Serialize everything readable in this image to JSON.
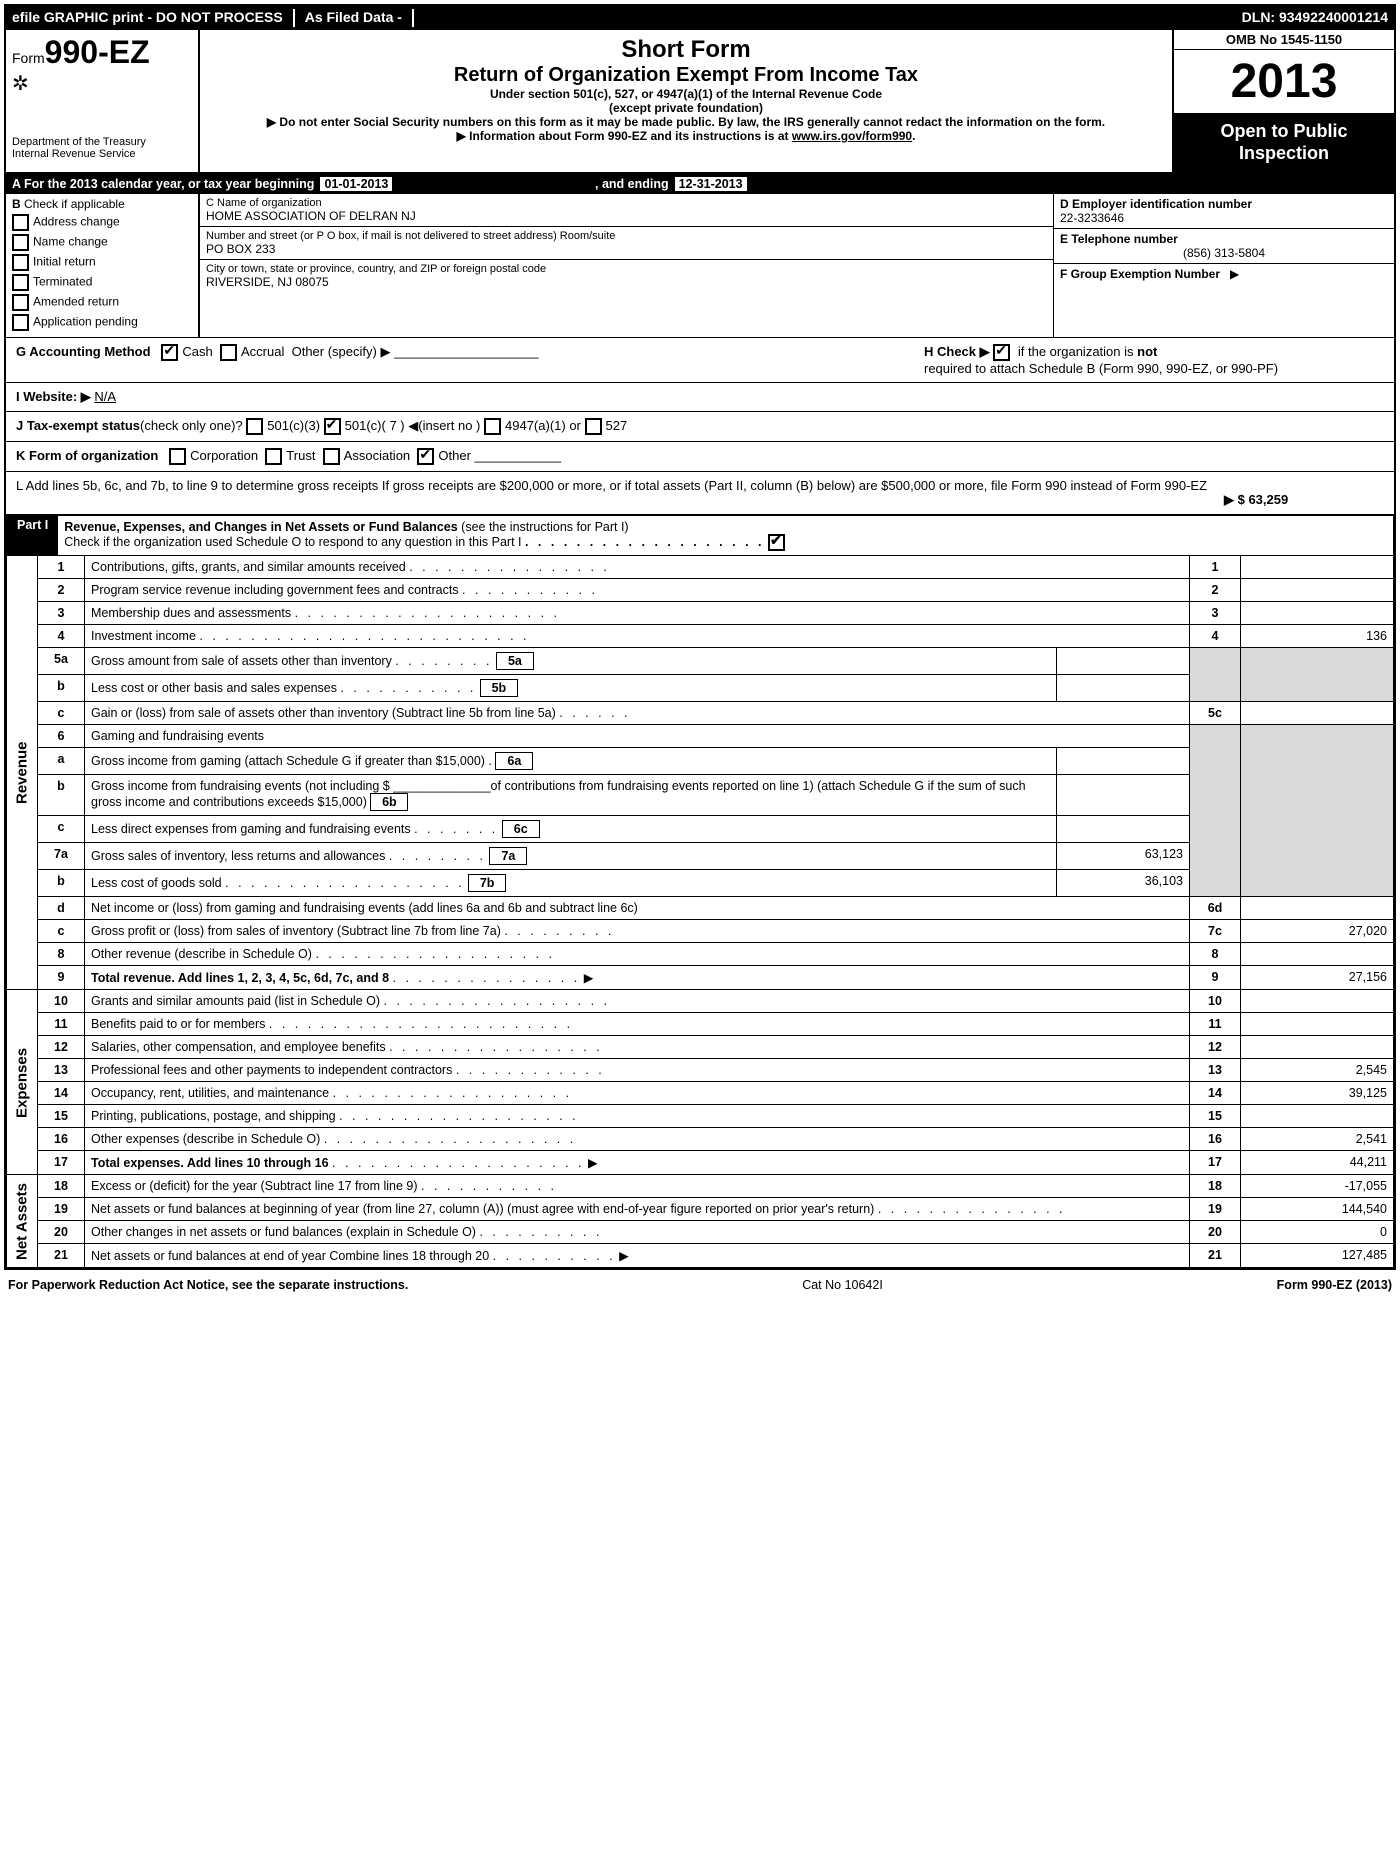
{
  "topbar": {
    "efile": "efile GRAPHIC print - DO NOT PROCESS",
    "asfiled": "As Filed Data -",
    "dln_label": "DLN:",
    "dln": "93492240001214"
  },
  "header": {
    "form_prefix": "Form",
    "form_number": "990-EZ",
    "dept1": "Department of the Treasury",
    "dept2": "Internal Revenue Service",
    "short_form": "Short Form",
    "main_title": "Return of Organization Exempt From Income Tax",
    "subtitle1": "Under section 501(c), 527, or 4947(a)(1) of the Internal Revenue Code",
    "subtitle2": "(except private foundation)",
    "warn1": "▶ Do not enter Social Security numbers on this form as it may be made public. By law, the IRS generally cannot redact the information on the form.",
    "warn2_pre": "▶ Information about Form 990-EZ and its instructions is at ",
    "warn2_link": "www.irs.gov/form990",
    "warn2_post": ".",
    "omb": "OMB No  1545-1150",
    "year": "2013",
    "open": "Open to Public Inspection"
  },
  "lineA": {
    "label": "A  For the 2013 calendar year, or tax year beginning",
    "begin": "01-01-2013",
    "ending_label": ", and ending",
    "end": "12-31-2013"
  },
  "sectionB": {
    "header": "B",
    "subhead": "Check if applicable",
    "items": [
      "Address change",
      "Name change",
      "Initial return",
      "Terminated",
      "Amended return",
      "Application pending"
    ]
  },
  "sectionC": {
    "name_label": "C Name of organization",
    "name": "HOME ASSOCIATION OF DELRAN NJ",
    "street_label": "Number and street (or P  O  box, if mail is not delivered to street address) Room/suite",
    "street": "PO BOX 233",
    "city_label": "City or town, state or province, country, and ZIP or foreign postal code",
    "city": "RIVERSIDE, NJ  08075"
  },
  "sectionD": {
    "label": "D Employer identification number",
    "value": "22-3233646"
  },
  "sectionE": {
    "label": "E Telephone number",
    "value": "(856) 313-5804"
  },
  "sectionF": {
    "label": "F Group Exemption Number",
    "arrow": "▶"
  },
  "accounting": {
    "g_label": "G Accounting Method",
    "cash": "Cash",
    "accrual": "Accrual",
    "other": "Other (specify) ▶",
    "i_label": "I Website: ▶",
    "website": "N/A",
    "j_label": "J Tax-exempt status",
    "j_sub": "(check only one)?",
    "j_501c3": "501(c)(3)",
    "j_501c": "501(c)( 7 )",
    "j_insert": "◀(insert no )",
    "j_4947": "4947(a)(1) or",
    "j_527": "527",
    "h_label": "H  Check ▶",
    "h_text1": "if the organization is",
    "h_not": "not",
    "h_text2": "required to attach Schedule B (Form 990, 990-EZ, or 990-PF)",
    "k_label": "K Form of organization",
    "k_corp": "Corporation",
    "k_trust": "Trust",
    "k_assoc": "Association",
    "k_other": "Other",
    "l_text": "L Add lines 5b, 6c, and 7b, to line 9 to determine gross receipts  If gross receipts are $200,000 or more, or if total assets (Part II, column (B) below) are $500,000 or more, file Form 990 instead of Form 990-EZ",
    "l_amount": "▶ $ 63,259"
  },
  "partI": {
    "title": "Revenue, Expenses, and Changes in Net Assets or Fund Balances",
    "sub": "(see the instructions for Part I)",
    "check_line": "Check if the organization used Schedule O to respond to any question in this Part I",
    "revenue_label": "Revenue",
    "expenses_label": "Expenses",
    "netassets_label": "Net Assets",
    "lines": {
      "1": {
        "ln": "1",
        "text": "Contributions, gifts, grants, and similar amounts received",
        "num": "1",
        "amt": ""
      },
      "2": {
        "ln": "2",
        "text": "Program service revenue including government fees and contracts",
        "num": "2",
        "amt": ""
      },
      "3": {
        "ln": "3",
        "text": "Membership dues and assessments",
        "num": "3",
        "amt": ""
      },
      "4": {
        "ln": "4",
        "text": "Investment income",
        "num": "4",
        "amt": "136"
      },
      "5a": {
        "ln": "5a",
        "text": "Gross amount from sale of assets other than inventory",
        "box": "5a",
        "boxamt": ""
      },
      "5b": {
        "ln": "b",
        "text": "Less  cost or other basis and sales expenses",
        "box": "5b",
        "boxamt": ""
      },
      "5c": {
        "ln": "c",
        "text": "Gain or (loss) from sale of assets other than inventory (Subtract line 5b from line 5a)",
        "num": "5c",
        "amt": ""
      },
      "6": {
        "ln": "6",
        "text": "Gaming and fundraising events"
      },
      "6a": {
        "ln": "a",
        "text": "Gross income from gaming (attach Schedule G if greater than $15,000)",
        "box": "6a",
        "boxamt": ""
      },
      "6b": {
        "ln": "b",
        "text": "Gross income from fundraising events (not including $ ______________of contributions from fundraising events reported on line 1) (attach Schedule G if the sum of such gross income and contributions exceeds $15,000)",
        "box": "6b",
        "boxamt": ""
      },
      "6c": {
        "ln": "c",
        "text": "Less  direct expenses from gaming and fundraising events",
        "box": "6c",
        "boxamt": ""
      },
      "6d": {
        "ln": "d",
        "text": "Net income or (loss) from gaming and fundraising events (add lines 6a and 6b and subtract line 6c)",
        "num": "6d",
        "amt": ""
      },
      "7a": {
        "ln": "7a",
        "text": "Gross sales of inventory, less returns and allowances",
        "box": "7a",
        "boxamt": "63,123"
      },
      "7b": {
        "ln": "b",
        "text": "Less  cost of goods sold",
        "box": "7b",
        "boxamt": "36,103"
      },
      "7c": {
        "ln": "c",
        "text": "Gross profit or (loss) from sales of inventory (Subtract line 7b from line 7a)",
        "num": "7c",
        "amt": "27,020"
      },
      "8": {
        "ln": "8",
        "text": "Other revenue (describe in Schedule O)",
        "num": "8",
        "amt": ""
      },
      "9": {
        "ln": "9",
        "text": "Total revenue. Add lines 1, 2, 3, 4, 5c, 6d, 7c, and 8",
        "num": "9",
        "amt": "27,156",
        "arrow": "▶",
        "bold": true
      },
      "10": {
        "ln": "10",
        "text": "Grants and similar amounts paid (list in Schedule O)",
        "num": "10",
        "amt": ""
      },
      "11": {
        "ln": "11",
        "text": "Benefits paid to or for members",
        "num": "11",
        "amt": ""
      },
      "12": {
        "ln": "12",
        "text": "Salaries, other compensation, and employee benefits",
        "num": "12",
        "amt": ""
      },
      "13": {
        "ln": "13",
        "text": "Professional fees and other payments to independent contractors",
        "num": "13",
        "amt": "2,545"
      },
      "14": {
        "ln": "14",
        "text": "Occupancy, rent, utilities, and maintenance",
        "num": "14",
        "amt": "39,125"
      },
      "15": {
        "ln": "15",
        "text": "Printing, publications, postage, and shipping",
        "num": "15",
        "amt": ""
      },
      "16": {
        "ln": "16",
        "text": "Other expenses (describe in Schedule O)",
        "num": "16",
        "amt": "2,541"
      },
      "17": {
        "ln": "17",
        "text": "Total expenses. Add lines 10 through 16",
        "num": "17",
        "amt": "44,211",
        "arrow": "▶",
        "bold": true
      },
      "18": {
        "ln": "18",
        "text": "Excess or (deficit) for the year (Subtract line 17 from line 9)",
        "num": "18",
        "amt": "-17,055"
      },
      "19": {
        "ln": "19",
        "text": "Net assets or fund balances at beginning of year (from line 27, column (A)) (must agree with end-of-year figure reported on prior year's return)",
        "num": "19",
        "amt": "144,540"
      },
      "20": {
        "ln": "20",
        "text": "Other changes in net assets or fund balances (explain in Schedule O)",
        "num": "20",
        "amt": "0"
      },
      "21": {
        "ln": "21",
        "text": "Net assets or fund balances at end of year  Combine lines 18 through 20",
        "num": "21",
        "amt": "127,485",
        "arrow": "▶"
      }
    }
  },
  "footer": {
    "left": "For Paperwork Reduction Act Notice, see the separate instructions.",
    "center": "Cat  No  10642I",
    "right": "Form 990-EZ (2013)"
  }
}
